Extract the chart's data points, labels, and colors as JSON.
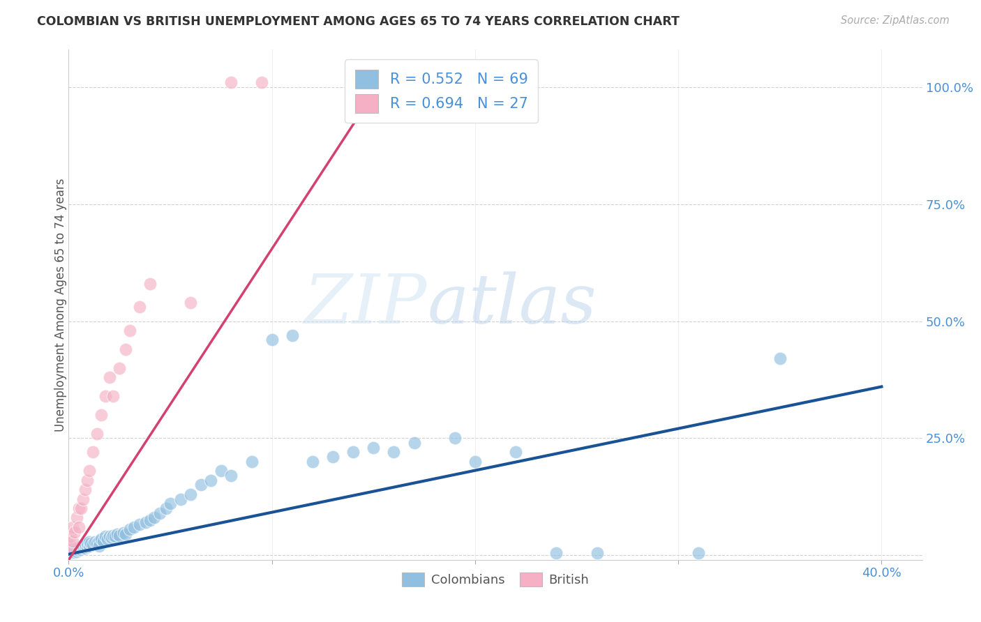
{
  "title": "COLOMBIAN VS BRITISH UNEMPLOYMENT AMONG AGES 65 TO 74 YEARS CORRELATION CHART",
  "source": "Source: ZipAtlas.com",
  "ylabel": "Unemployment Among Ages 65 to 74 years",
  "xlim": [
    0.0,
    0.42
  ],
  "ylim": [
    -0.01,
    1.08
  ],
  "yticks": [
    0.0,
    0.25,
    0.5,
    0.75,
    1.0
  ],
  "ytick_labels": [
    "",
    "25.0%",
    "50.0%",
    "75.0%",
    "100.0%"
  ],
  "xticks": [
    0.0,
    0.1,
    0.2,
    0.3,
    0.4
  ],
  "xtick_labels": [
    "0.0%",
    "",
    "",
    "",
    "40.0%"
  ],
  "blue_R": 0.552,
  "blue_N": 69,
  "pink_R": 0.694,
  "pink_N": 27,
  "blue_color": "#90bfe0",
  "pink_color": "#f5b0c5",
  "blue_line_color": "#1a5296",
  "pink_line_color": "#d44070",
  "background_color": "#ffffff",
  "watermark_zip": "ZIP",
  "watermark_atlas": "atlas",
  "legend_label_blue": "Colombians",
  "legend_label_pink": "British",
  "blue_line_x": [
    0.0,
    0.4
  ],
  "blue_line_y": [
    0.002,
    0.36
  ],
  "pink_line_x": [
    0.0,
    0.155
  ],
  "pink_line_y": [
    -0.01,
    1.02
  ],
  "blue_scatter_x": [
    0.001,
    0.001,
    0.002,
    0.002,
    0.003,
    0.003,
    0.004,
    0.004,
    0.005,
    0.005,
    0.006,
    0.006,
    0.007,
    0.007,
    0.008,
    0.008,
    0.009,
    0.009,
    0.01,
    0.01,
    0.011,
    0.012,
    0.013,
    0.014,
    0.015,
    0.015,
    0.016,
    0.017,
    0.018,
    0.019,
    0.02,
    0.021,
    0.022,
    0.023,
    0.024,
    0.025,
    0.027,
    0.028,
    0.03,
    0.032,
    0.035,
    0.038,
    0.04,
    0.042,
    0.045,
    0.048,
    0.05,
    0.055,
    0.06,
    0.065,
    0.07,
    0.075,
    0.08,
    0.09,
    0.1,
    0.11,
    0.12,
    0.13,
    0.14,
    0.15,
    0.16,
    0.17,
    0.19,
    0.2,
    0.22,
    0.24,
    0.26,
    0.31,
    0.35
  ],
  "blue_scatter_y": [
    0.005,
    0.01,
    0.008,
    0.012,
    0.006,
    0.01,
    0.008,
    0.013,
    0.01,
    0.015,
    0.012,
    0.018,
    0.015,
    0.02,
    0.015,
    0.022,
    0.018,
    0.025,
    0.02,
    0.028,
    0.025,
    0.022,
    0.028,
    0.025,
    0.03,
    0.02,
    0.035,
    0.03,
    0.04,
    0.035,
    0.04,
    0.038,
    0.042,
    0.04,
    0.045,
    0.042,
    0.048,
    0.045,
    0.055,
    0.06,
    0.065,
    0.07,
    0.075,
    0.08,
    0.09,
    0.1,
    0.11,
    0.12,
    0.13,
    0.15,
    0.16,
    0.18,
    0.17,
    0.2,
    0.46,
    0.47,
    0.2,
    0.21,
    0.22,
    0.23,
    0.22,
    0.24,
    0.25,
    0.2,
    0.22,
    0.005,
    0.005,
    0.005,
    0.42
  ],
  "pink_scatter_x": [
    0.001,
    0.001,
    0.002,
    0.002,
    0.003,
    0.004,
    0.005,
    0.005,
    0.006,
    0.007,
    0.008,
    0.009,
    0.01,
    0.012,
    0.014,
    0.016,
    0.018,
    0.02,
    0.022,
    0.025,
    0.028,
    0.03,
    0.035,
    0.04,
    0.06,
    0.08,
    0.095
  ],
  "pink_scatter_y": [
    0.02,
    0.04,
    0.03,
    0.06,
    0.05,
    0.08,
    0.06,
    0.1,
    0.1,
    0.12,
    0.14,
    0.16,
    0.18,
    0.22,
    0.26,
    0.3,
    0.34,
    0.38,
    0.34,
    0.4,
    0.44,
    0.48,
    0.53,
    0.58,
    0.54,
    1.01,
    1.01
  ]
}
